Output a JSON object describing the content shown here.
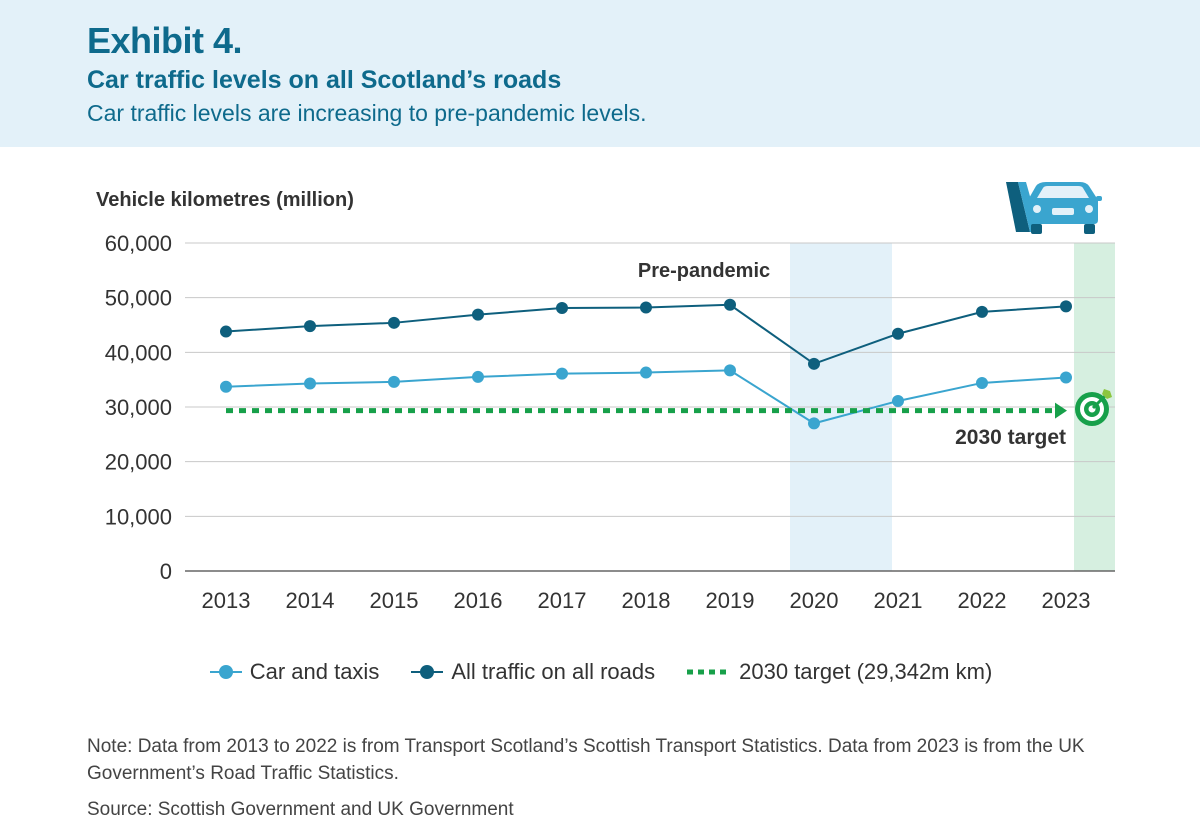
{
  "header": {
    "exhibit": "Exhibit 4.",
    "title": "Car traffic levels on all Scotland’s roads",
    "subtitle": "Car traffic levels are increasing to pre-pandemic levels."
  },
  "chart_data": {
    "type": "line",
    "ylabel": "Vehicle kilometres (million)",
    "ylim": [
      0,
      60000
    ],
    "yticks": [
      "60,000",
      "50,000",
      "40,000",
      "30,000",
      "20,000",
      "10,000",
      "0"
    ],
    "ytick_values": [
      60000,
      50000,
      40000,
      30000,
      20000,
      10000,
      0
    ],
    "x": [
      "2013",
      "2014",
      "2015",
      "2016",
      "2017",
      "2018",
      "2019",
      "2020",
      "2021",
      "2022",
      "2023"
    ],
    "series": [
      {
        "name": "Car and taxis",
        "color": "#3aa5cf",
        "values": [
          33700,
          34300,
          34600,
          35500,
          36100,
          36300,
          36700,
          27000,
          31100,
          34400,
          35400
        ]
      },
      {
        "name": "All traffic on all roads",
        "color": "#0e5f7d",
        "values": [
          43800,
          44800,
          45400,
          46900,
          48100,
          48200,
          48700,
          37900,
          43400,
          47400,
          48400
        ]
      }
    ],
    "target": {
      "name": "2030 target (29,342m km)",
      "value": 29342,
      "color": "#17a04a",
      "label": "2030 target"
    },
    "annotations": {
      "pandemic_label": "Pre-pandemic",
      "pandemic_band_color": "#e3f1f9",
      "target_band_color": "#d6efe0"
    },
    "grid": true,
    "legend": "bottom"
  },
  "icons": {
    "car": "car-on-road-icon",
    "target": "target-icon"
  },
  "note": "Note: Data from 2013 to 2022 is from Transport Scotland’s Scottish Transport Statistics. Data from 2023 is from the UK Government’s Road Traffic Statistics.",
  "source": "Source: Scottish Government and UK Government"
}
